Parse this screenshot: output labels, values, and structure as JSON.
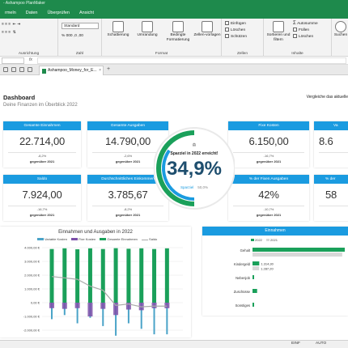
{
  "window": {
    "title": "- Ashampoo PlanMaker"
  },
  "menu": {
    "tabs": [
      "rmeln",
      "Daten",
      "Überprüfen",
      "Ansicht"
    ]
  },
  "ribbon": {
    "number_format": "Standard",
    "groups": {
      "alignment": "Ausrichtung",
      "number": "Zahl",
      "format": "Format",
      "cells": "Zellen",
      "content": "Inhalte"
    },
    "buttons": {
      "shading": "Schattierung",
      "border": "Umrandung",
      "conditional": "Bedingte Formatierung",
      "cell_styles": "Zellen-vorlagen",
      "insert": "Einfügen",
      "delete": "Löschen",
      "protect": "Schützen",
      "sort": "Sortieren und filtern",
      "autosum": "Autosumme",
      "fill": "Füllen",
      "clear": "Löschen",
      "search": "Suchen"
    }
  },
  "document": {
    "tab_name": "Ashampoo_Money_for_E..."
  },
  "dashboard": {
    "title": "Dashboard",
    "subtitle": "Deine Finanzen im Überblick 2022",
    "compare": "Vergleiche das aktuelle",
    "kpis": [
      {
        "label": "Gesamte Einnahmen",
        "value": "22.714,00",
        "pct": "-8,2%",
        "vs": "gegenüber 2021"
      },
      {
        "label": "Gesamte Ausgaben",
        "value": "14.790,00",
        "pct": "-2,6%",
        "vs": "gegenüber 2021"
      },
      {
        "label": "Fixe Kosten",
        "value": "6.150,00",
        "pct": "-16,7%",
        "vs": "gegenüber 2021"
      },
      {
        "label": "Va",
        "value": "8.6",
        "pct": "",
        "vs": ""
      },
      {
        "label": "Saldo",
        "value": "7.924,00",
        "pct": "-16,7%",
        "vs": "gegenüber 2021"
      },
      {
        "label": "Durchschnittliches Einkommen",
        "value": "3.785,67",
        "pct": "-8,2%",
        "vs": "gegenüber 2021"
      },
      {
        "label": "% der Fixen Ausgaben",
        "value": "42%",
        "pct": "-10,7%",
        "vs": "gegenüber 2021"
      },
      {
        "label": "% der",
        "value": "58",
        "pct": "",
        "vs": ""
      }
    ],
    "gauge": {
      "label": "Sparziel in 2022 erreicht!",
      "value": "34,9%",
      "legend_label": "Sparziel",
      "legend_value": "50,0%",
      "accent": "#1a9be0",
      "secondary": "#1aa05a"
    }
  },
  "chart_data": [
    {
      "type": "bar",
      "title": "Einnahmen und Ausgaben in 2022",
      "series": [
        {
          "name": "Variable Kosten",
          "color": "#4aa3c8"
        },
        {
          "name": "Fixe Kosten",
          "color": "#7b4fa8"
        },
        {
          "name": "Gesamte Einnahmen",
          "color": "#1aa05a"
        },
        {
          "name": "Saldo",
          "color": "#aaaaaa"
        }
      ],
      "yticks": [
        "4.000,00 €",
        "3.000,00 €",
        "2.000,00 €",
        "1.000,00 €",
        "0,00 €",
        "-1.000,00 €",
        "-2.000,00 €"
      ],
      "ylim": [
        -2000,
        4000
      ],
      "einnahmen": [
        3900,
        3950,
        3880,
        3950,
        3900,
        3960,
        3920,
        3950,
        3900,
        3950
      ],
      "ausgaben": [
        -1200,
        -900,
        -1500,
        -1100,
        -1700,
        -2400,
        -1500,
        -1900,
        -2300,
        -2300
      ],
      "fixe": [
        -400,
        -450,
        -400,
        -1000,
        -450,
        -900,
        -500,
        -550,
        -400,
        -400
      ],
      "saldo": [
        1900,
        1800,
        1700,
        1200,
        900,
        -200,
        -100,
        -300,
        -250,
        -250
      ],
      "grid": true,
      "legend": "top"
    },
    {
      "type": "bar",
      "title": "Einnahmen",
      "categories": [
        "Gehalt",
        "Kindergeld",
        "Nebenjob",
        "Zuschüsse",
        "Sonstiges"
      ],
      "series": [
        {
          "name": "2022",
          "values": [
            18000,
            1314.3,
            300,
            900,
            200
          ],
          "color": "#1aa05a"
        },
        {
          "name": "2021",
          "values": [
            17500,
            1287.2,
            0,
            0,
            0
          ],
          "color": "#d8d8d8"
        }
      ],
      "data_labels": [
        "",
        "1.314,30",
        "1.287,20",
        "",
        ""
      ],
      "legend": "top"
    }
  ],
  "statusbar": {
    "mode": "EINF",
    "mode2": "AUTO"
  }
}
